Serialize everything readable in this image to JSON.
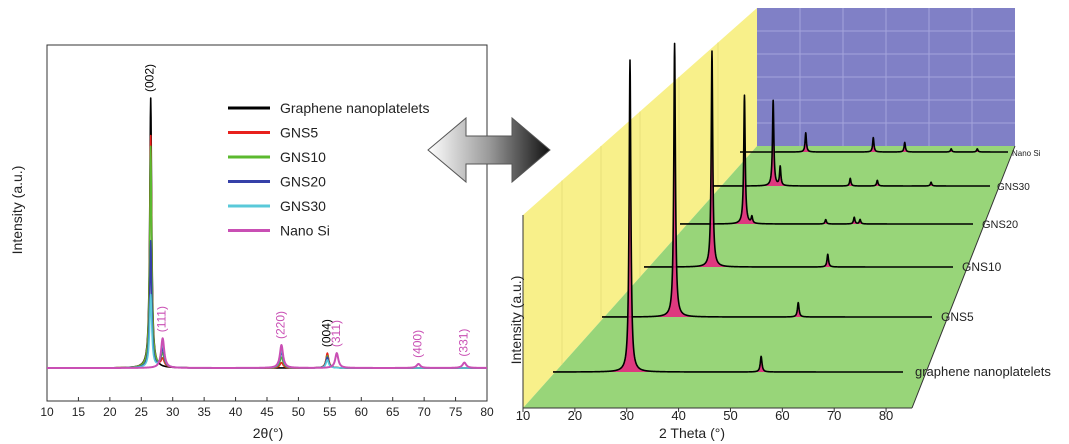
{
  "chart_data": [
    {
      "type": "line",
      "xlabel": "2θ(°)",
      "ylabel": "Intensity (a.u.)",
      "xlim": [
        10,
        80
      ],
      "xticks": [
        10,
        15,
        20,
        25,
        30,
        35,
        40,
        45,
        50,
        55,
        60,
        65,
        70,
        75,
        80
      ],
      "legend_position": "top-right",
      "series": [
        {
          "name": "Graphene nanoplatelets",
          "color": "#000000",
          "peaks": [
            {
              "x": 26.5,
              "h": 1.0,
              "w": 0.18
            },
            {
              "x": 54.6,
              "h": 0.05,
              "w": 0.25
            }
          ]
        },
        {
          "name": "GNS5",
          "color": "#e8201c",
          "peaks": [
            {
              "x": 26.5,
              "h": 0.86,
              "w": 0.18
            },
            {
              "x": 28.4,
              "h": 0.03,
              "w": 0.3
            },
            {
              "x": 47.3,
              "h": 0.02,
              "w": 0.3
            },
            {
              "x": 54.6,
              "h": 0.055,
              "w": 0.25
            }
          ]
        },
        {
          "name": "GNS10",
          "color": "#5bb92f",
          "peaks": [
            {
              "x": 26.5,
              "h": 0.82,
              "w": 0.18
            },
            {
              "x": 28.4,
              "h": 0.05,
              "w": 0.3
            },
            {
              "x": 47.3,
              "h": 0.04,
              "w": 0.3
            },
            {
              "x": 54.6,
              "h": 0.045,
              "w": 0.25
            }
          ]
        },
        {
          "name": "GNS20",
          "color": "#3540a8",
          "peaks": [
            {
              "x": 26.5,
              "h": 0.47,
              "w": 0.18
            },
            {
              "x": 28.4,
              "h": 0.07,
              "w": 0.3
            },
            {
              "x": 47.3,
              "h": 0.06,
              "w": 0.3
            },
            {
              "x": 54.6,
              "h": 0.04,
              "w": 0.25
            }
          ]
        },
        {
          "name": "GNS30",
          "color": "#59c9d9",
          "peaks": [
            {
              "x": 26.5,
              "h": 0.27,
              "w": 0.2
            },
            {
              "x": 28.4,
              "h": 0.09,
              "w": 0.3
            },
            {
              "x": 47.3,
              "h": 0.07,
              "w": 0.3
            },
            {
              "x": 54.6,
              "h": 0.03,
              "w": 0.25
            }
          ]
        },
        {
          "name": "Nano Si",
          "color": "#c94fb4",
          "peaks": [
            {
              "x": 28.4,
              "h": 0.11,
              "w": 0.3
            },
            {
              "x": 47.3,
              "h": 0.085,
              "w": 0.3
            },
            {
              "x": 56.1,
              "h": 0.055,
              "w": 0.3
            },
            {
              "x": 69.1,
              "h": 0.015,
              "w": 0.35
            },
            {
              "x": 76.4,
              "h": 0.02,
              "w": 0.35
            }
          ]
        }
      ],
      "annotations": [
        {
          "text": "(002)",
          "x": 26.5,
          "color": "#000000"
        },
        {
          "text": "(111)",
          "x": 28.4,
          "color": "#c94fb4"
        },
        {
          "text": "(220)",
          "x": 47.3,
          "color": "#c94fb4"
        },
        {
          "text": "(004)",
          "x": 54.6,
          "color": "#000000"
        },
        {
          "text": "(311)",
          "x": 56.1,
          "color": "#c94fb4"
        },
        {
          "text": "(400)",
          "x": 69.1,
          "color": "#c94fb4"
        },
        {
          "text": "(331)",
          "x": 76.4,
          "color": "#c94fb4"
        }
      ]
    },
    {
      "type": "line",
      "xlabel": "2 Theta (°)",
      "ylabel": "Intensity (a.u.)",
      "xlim": [
        10,
        85
      ],
      "xticks": [
        10,
        20,
        30,
        40,
        50,
        60,
        70,
        80
      ],
      "series": [
        {
          "name": "graphene nanoplatelets",
          "peaks": [
            {
              "x": 26.5,
              "h": 1.0
            },
            {
              "x": 54.6,
              "h": 0.05
            }
          ]
        },
        {
          "name": "GNS5",
          "peaks": [
            {
              "x": 26.5,
              "h": 0.95
            },
            {
              "x": 54.6,
              "h": 0.05
            }
          ]
        },
        {
          "name": "GNS10",
          "peaks": [
            {
              "x": 26.5,
              "h": 0.85
            },
            {
              "x": 54.6,
              "h": 0.05
            }
          ]
        },
        {
          "name": "GNS20",
          "peaks": [
            {
              "x": 26.5,
              "h": 0.58
            },
            {
              "x": 28.4,
              "h": 0.03
            },
            {
              "x": 47.3,
              "h": 0.02
            },
            {
              "x": 54.6,
              "h": 0.03
            },
            {
              "x": 56.1,
              "h": 0.02
            }
          ]
        },
        {
          "name": "GNS30",
          "peaks": [
            {
              "x": 26.5,
              "h": 0.45
            },
            {
              "x": 28.4,
              "h": 0.1
            },
            {
              "x": 47.3,
              "h": 0.04
            },
            {
              "x": 54.6,
              "h": 0.03
            },
            {
              "x": 69.1,
              "h": 0.02
            }
          ]
        },
        {
          "name": "Nano Si",
          "peaks": [
            {
              "x": 28.4,
              "h": 0.12
            },
            {
              "x": 47.3,
              "h": 0.09
            },
            {
              "x": 56.1,
              "h": 0.06
            },
            {
              "x": 69.1,
              "h": 0.02
            },
            {
              "x": 76.4,
              "h": 0.02
            }
          ]
        }
      ],
      "colors": {
        "back_wall": "#8080c6",
        "side_wall": "#f8f08a",
        "floor": "#98d579",
        "fill": "#e6287f"
      }
    }
  ]
}
